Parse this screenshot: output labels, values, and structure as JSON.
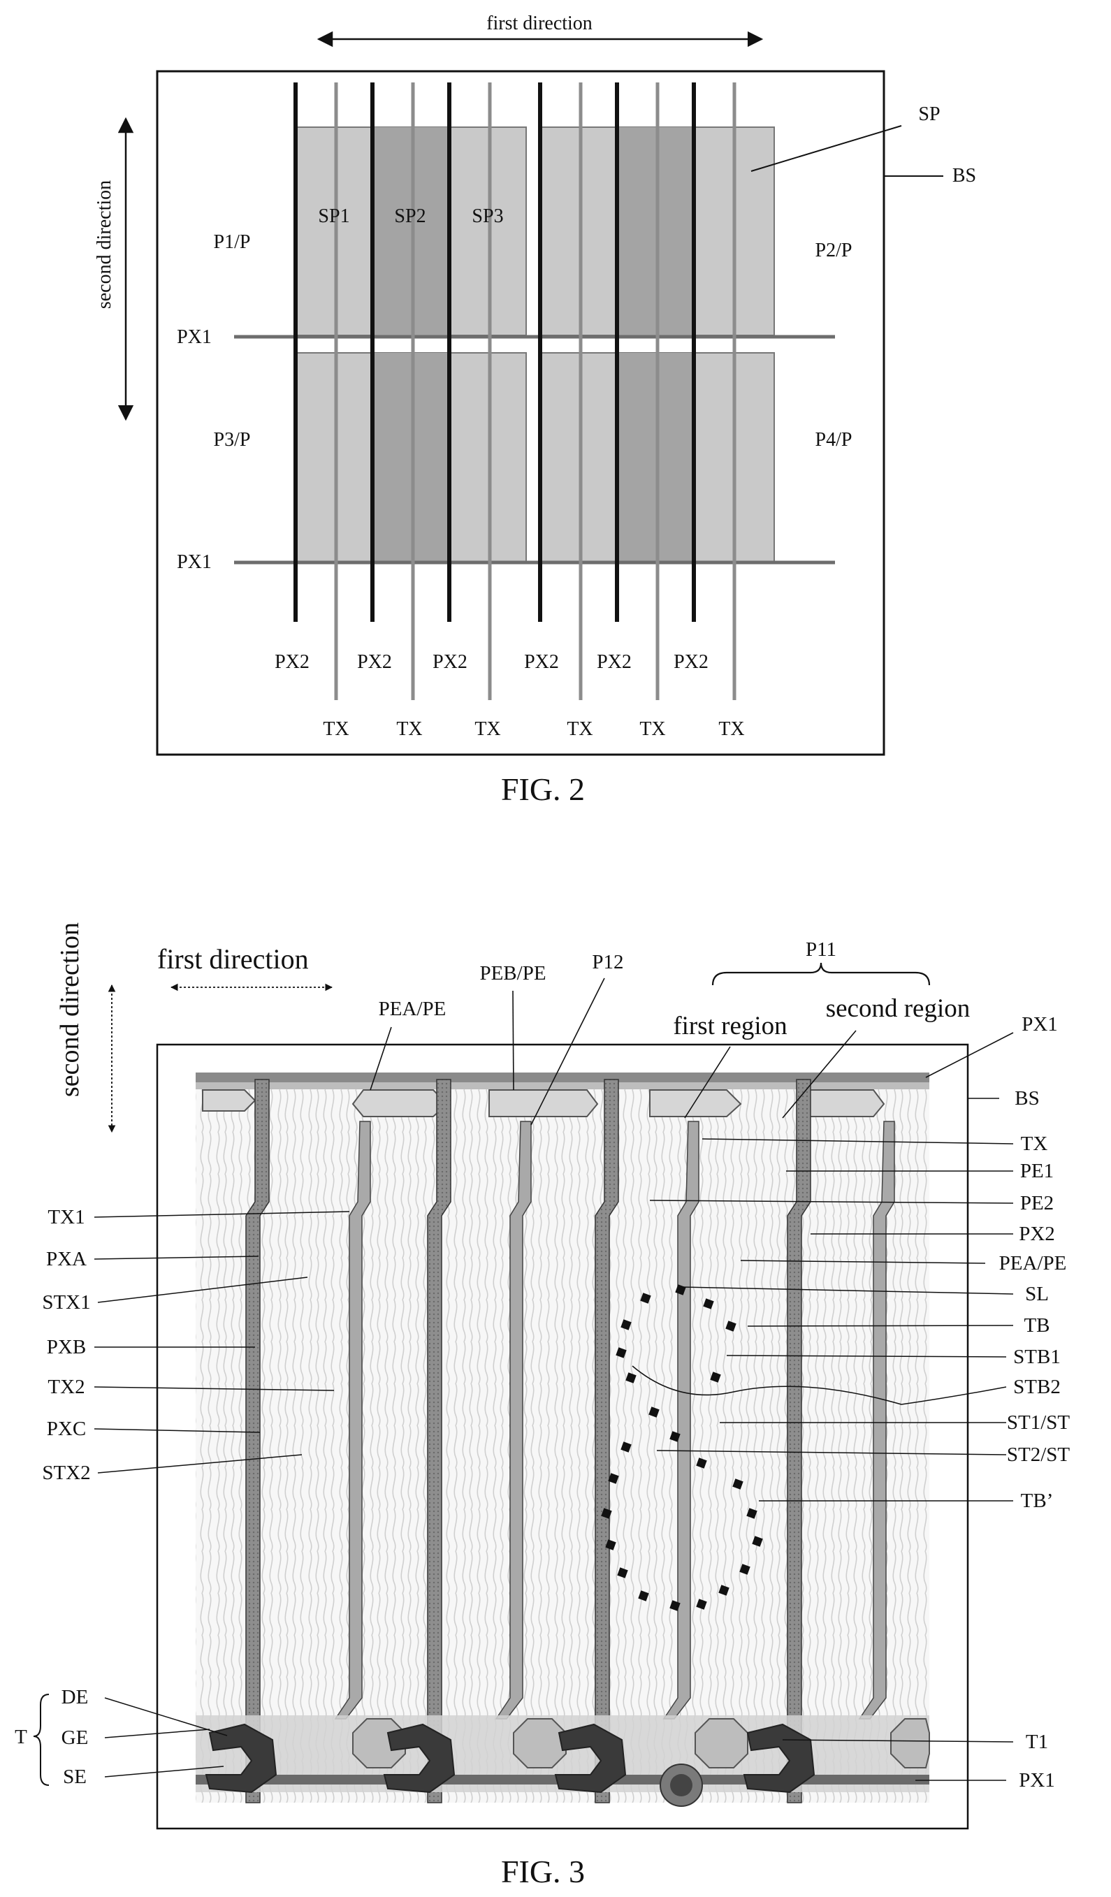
{
  "fig2": {
    "caption": "FIG. 2",
    "first_direction": "first direction",
    "second_direction": "second direction",
    "sp": "SP",
    "bs": "BS",
    "sp1": "SP1",
    "sp2": "SP2",
    "sp3": "SP3",
    "p1": "P1/P",
    "p2": "P2/P",
    "p3": "P3/P",
    "p4": "P4/P",
    "px1_top": "PX1",
    "px1_bottom": "PX1",
    "px2_labels": [
      "PX2",
      "PX2",
      "PX2",
      "PX2",
      "PX2",
      "PX2"
    ],
    "tx_labels": [
      "TX",
      "TX",
      "TX",
      "TX",
      "TX",
      "TX"
    ]
  },
  "fig3": {
    "caption": "FIG. 3",
    "second_direction": "second direction",
    "first_direction": "first  direction",
    "pea_top": "PEA/PE",
    "peb": "PEB/PE",
    "p12": "P12",
    "p11": "P11",
    "first_region": "first region",
    "second_region": "second region",
    "px1_top": "PX1",
    "bs": "BS",
    "right_labels": [
      "TX",
      "PE1",
      "PE2",
      "PX2",
      "PEA/PE",
      "SL",
      "TB",
      "STB1",
      "STB2",
      "ST1/ST",
      "ST2/ST",
      "TB’",
      "T1",
      "PX1"
    ],
    "left_labels": [
      "TX1",
      "PXA",
      "STX1",
      "PXB",
      "TX2",
      "PXC",
      "STX2"
    ],
    "t_group": "T",
    "de": "DE",
    "ge": "GE",
    "se": "SE"
  },
  "colors": {
    "subpixel_light": "#c9c9c9",
    "subpixel_mid": "#b2b2b2",
    "subpixel_dark": "#9c9c9c",
    "line_dark": "#111111",
    "line_gray": "#888888",
    "panel_gray": "#d6d6d6",
    "thin_film_dark": "#3a3a3a"
  }
}
